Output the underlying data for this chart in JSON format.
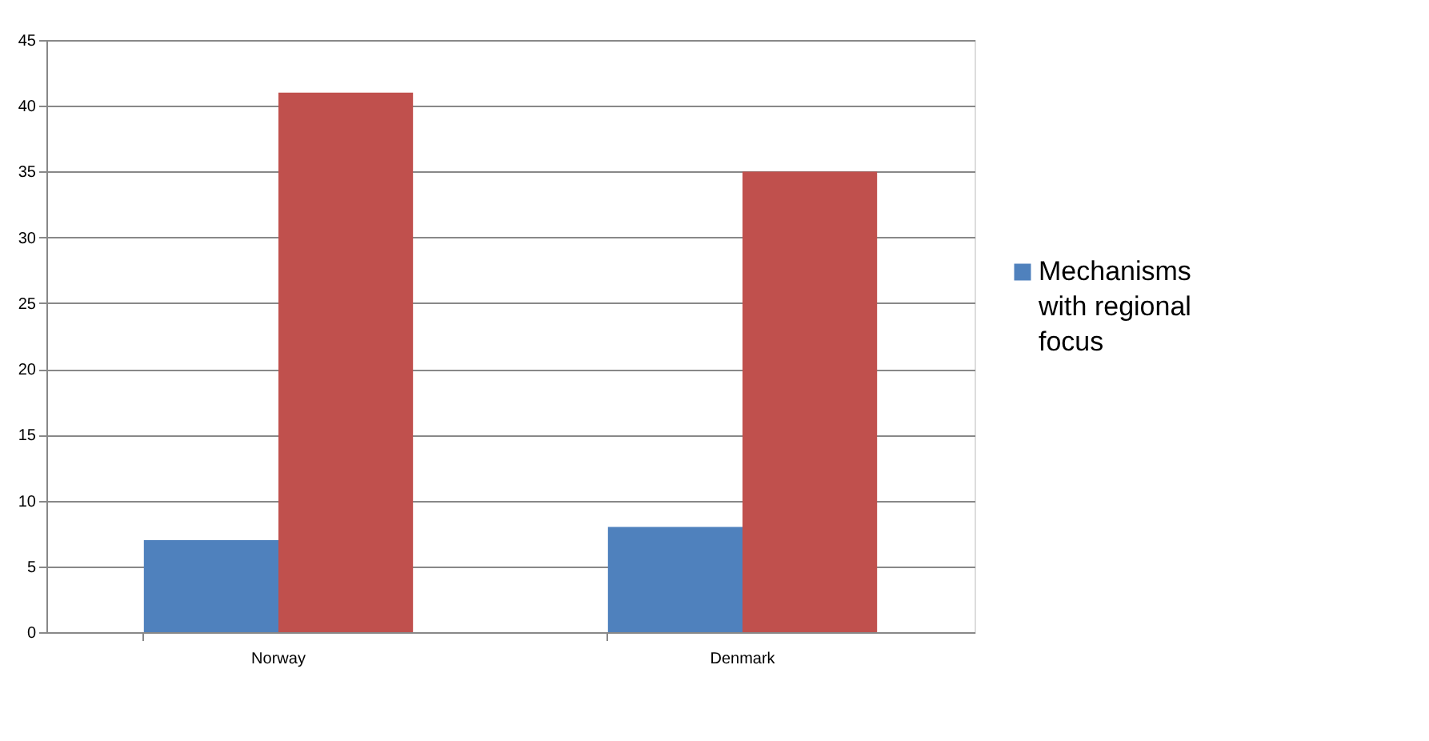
{
  "chart_data": {
    "type": "bar",
    "categories": [
      "Norway",
      "Denmark"
    ],
    "series": [
      {
        "name": "Mechanisms with regional focus",
        "color": "#4f81bd",
        "values": [
          7,
          8
        ]
      },
      {
        "color": "#c0504d",
        "values": [
          41,
          35
        ]
      }
    ],
    "ylim": [
      0,
      45
    ],
    "yticks": [
      0,
      5,
      10,
      15,
      20,
      25,
      30,
      35,
      40,
      45
    ],
    "grid": "y",
    "legend": "right"
  }
}
